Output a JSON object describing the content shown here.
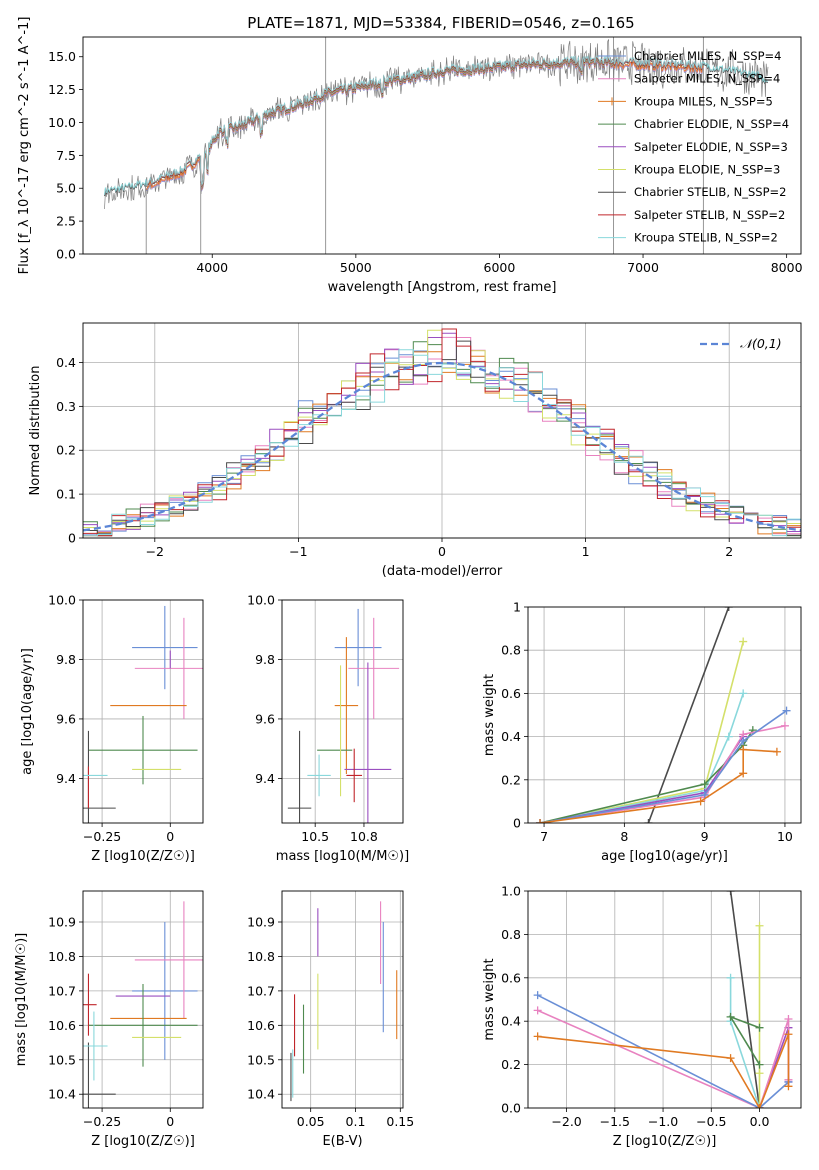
{
  "figure_title": "PLATE=1871, MJD=53384, FIBERID=0546, z=0.165",
  "colors": {
    "ChabrierMILES": "#6a8fd6",
    "SalpeterMILES": "#e882c0",
    "KroupaMILES": "#e07a22",
    "ChabrierELODIE": "#4f8a4f",
    "SalpeterELODIE": "#9a4fc0",
    "KroupaELODIE": "#d4e06a",
    "ChabrierSTELIB": "#4a4a4a",
    "SalpeterSTELIB": "#c0262b",
    "KroupaSTELIB": "#8ad8dc",
    "data": "#7f7f7f",
    "normal": "#5b85d6"
  },
  "chart_data": [
    {
      "id": "spectrum",
      "type": "line",
      "title": "PLATE=1871, MJD=53384, FIBERID=0546, z=0.165",
      "xlabel": "wavelength [Angstrom, rest frame]",
      "ylabel": "Flux [f_λ 10^-17 erg cm^-2 s^-1 A^-1]",
      "xlim": [
        3100,
        8100
      ],
      "ylim": [
        0,
        16.5
      ],
      "xticks": [
        4000,
        5000,
        6000,
        7000,
        8000
      ],
      "yticks": [
        0.0,
        2.5,
        5.0,
        7.5,
        10.0,
        12.5,
        15.0
      ],
      "legend_position": "top-right",
      "legend": [
        {
          "key": "ChabrierMILES",
          "label": "Chabrier MILES, N_SSP=4",
          "marker": ""
        },
        {
          "key": "SalpeterMILES",
          "label": "Salpeter MILES, N_SSP=4",
          "marker": ""
        },
        {
          "key": "KroupaMILES",
          "label": "Kroupa MILES, N_SSP=5",
          "marker": "+"
        },
        {
          "key": "ChabrierELODIE",
          "label": "Chabrier ELODIE, N_SSP=4",
          "marker": ""
        },
        {
          "key": "SalpeterELODIE",
          "label": "Salpeter ELODIE, N_SSP=3",
          "marker": ""
        },
        {
          "key": "KroupaELODIE",
          "label": "Kroupa ELODIE, N_SSP=3",
          "marker": ""
        },
        {
          "key": "ChabrierSTELIB",
          "label": "Chabrier STELIB, N_SSP=2",
          "marker": ""
        },
        {
          "key": "SalpeterSTELIB",
          "label": "Salpeter STELIB, N_SSP=2",
          "marker": ""
        },
        {
          "key": "KroupaSTELIB",
          "label": "Kroupa STELIB, N_SSP=2",
          "marker": ""
        }
      ],
      "continuum": [
        [
          3250,
          4.6
        ],
        [
          3400,
          4.9
        ],
        [
          3600,
          5.4
        ],
        [
          3800,
          6.3
        ],
        [
          3950,
          7.6
        ],
        [
          4050,
          9.3
        ],
        [
          4200,
          9.7
        ],
        [
          4400,
          10.7
        ],
        [
          4600,
          11.3
        ],
        [
          4800,
          12.2
        ],
        [
          5000,
          12.6
        ],
        [
          5200,
          13.1
        ],
        [
          5400,
          13.4
        ],
        [
          5600,
          13.9
        ],
        [
          5800,
          14.0
        ],
        [
          6000,
          14.2
        ],
        [
          6200,
          14.4
        ],
        [
          6400,
          14.5
        ],
        [
          6600,
          14.6
        ],
        [
          6800,
          14.5
        ],
        [
          7000,
          14.4
        ],
        [
          7200,
          14.3
        ],
        [
          7400,
          14.2
        ],
        [
          7600,
          13.8
        ],
        [
          7800,
          13.4
        ],
        [
          7870,
          13.0
        ]
      ]
    },
    {
      "id": "residuals",
      "type": "line",
      "xlabel": "(data-model)/error",
      "ylabel": "Normed distribution",
      "xlim": [
        -2.5,
        2.5
      ],
      "ylim": [
        0,
        0.49
      ],
      "xticks": [
        -2,
        -1,
        0,
        1,
        2
      ],
      "yticks": [
        0.0,
        0.1,
        0.2,
        0.3,
        0.4
      ],
      "legend_position": "top-right",
      "legend": [
        {
          "label": "𝒩(0,1)",
          "style": "dashed"
        }
      ],
      "bin_edges_start": -2.5,
      "bin_width": 0.1
    },
    {
      "id": "age_vs_Z",
      "type": "scatter",
      "xlabel": "Z [log10(Z/Z☉)]",
      "ylabel": "age  [log10(age/yr)]",
      "xlim": [
        -0.32,
        0.12
      ],
      "ylim": [
        9.25,
        10.0
      ],
      "xticks": [
        -0.25,
        0.0
      ],
      "yticks": [
        9.4,
        9.6,
        9.8,
        10.0
      ],
      "points": [
        {
          "key": "ChabrierMILES",
          "x": -0.02,
          "y": 9.84,
          "xerr": 0.12,
          "yerr": 0.14
        },
        {
          "key": "SalpeterMILES",
          "x": 0.05,
          "y": 9.77,
          "xerr": 0.18,
          "yerr": 0.17
        },
        {
          "key": "KroupaMILES",
          "x": -0.08,
          "y": 9.645,
          "xerr": 0.14,
          "yerr": 0.0
        },
        {
          "key": "ChabrierELODIE",
          "x": -0.1,
          "y": 9.495,
          "xerr": 0.2,
          "yerr": 0.115
        },
        {
          "key": "SalpeterELODIE",
          "x": 0.0,
          "y": 9.8,
          "xerr": 0.0,
          "yerr": 0.03
        },
        {
          "key": "KroupaELODIE",
          "x": -0.05,
          "y": 9.43,
          "xerr": 0.09,
          "yerr": 0.0
        },
        {
          "key": "ChabrierSTELIB",
          "x": -0.3,
          "y": 9.3,
          "xerr": 0.1,
          "yerr": 0.26
        },
        {
          "key": "SalpeterSTELIB",
          "x": -0.3,
          "y": 9.37,
          "xerr": 0.0,
          "yerr": 0.07
        },
        {
          "key": "KroupaSTELIB",
          "x": -0.28,
          "y": 9.41,
          "xerr": 0.05,
          "yerr": 0.0
        }
      ]
    },
    {
      "id": "age_vs_mass",
      "type": "scatter",
      "xlabel": "mass [log10(M/M☉)]",
      "ylabel": "",
      "xlim": [
        10.33,
        10.95
      ],
      "ylim": [
        9.25,
        10.0
      ],
      "xticks": [
        10.5,
        10.75
      ],
      "yticks": [
        9.4,
        9.6,
        9.8,
        10.0
      ],
      "points": [
        {
          "key": "ChabrierMILES",
          "x": 10.72,
          "y": 9.84,
          "xerr": 0.12,
          "yerr": 0.13
        },
        {
          "key": "SalpeterMILES",
          "x": 10.8,
          "y": 9.77,
          "xerr": 0.13,
          "yerr": 0.17
        },
        {
          "key": "KroupaMILES",
          "x": 10.66,
          "y": 9.645,
          "xerr": 0.06,
          "yerr": 0.23
        },
        {
          "key": "ChabrierELODIE",
          "x": 10.6,
          "y": 9.495,
          "xerr": 0.09,
          "yerr": 0.0
        },
        {
          "key": "SalpeterELODIE",
          "x": 10.77,
          "y": 9.43,
          "xerr": 0.12,
          "yerr": 0.36
        },
        {
          "key": "KroupaELODIE",
          "x": 10.63,
          "y": 9.56,
          "xerr": 0.0,
          "yerr": 0.22
        },
        {
          "key": "ChabrierSTELIB",
          "x": 10.42,
          "y": 9.3,
          "xerr": 0.06,
          "yerr": 0.26
        },
        {
          "key": "SalpeterSTELIB",
          "x": 10.7,
          "y": 9.41,
          "xerr": 0.04,
          "yerr": 0.09
        },
        {
          "key": "KroupaSTELIB",
          "x": 10.52,
          "y": 9.41,
          "xerr": 0.06,
          "yerr": 0.07
        }
      ]
    },
    {
      "id": "weight_vs_age",
      "type": "line",
      "xlabel": "age  [log10(age/yr)]",
      "ylabel": "mass weight",
      "xlim": [
        6.8,
        10.2
      ],
      "ylim": [
        0,
        1.0
      ],
      "xticks": [
        7,
        8,
        9,
        10
      ],
      "yticks": [
        0.0,
        0.2,
        0.4,
        0.6,
        0.8,
        1.0
      ],
      "series": [
        {
          "key": "ChabrierSTELIB",
          "x": [
            8.3,
            9.3
          ],
          "y": [
            0.0,
            1.0
          ]
        },
        {
          "key": "KroupaELODIE",
          "x": [
            6.95,
            9.0,
            9.48
          ],
          "y": [
            0.0,
            0.16,
            0.84
          ]
        },
        {
          "key": "KroupaSTELIB",
          "x": [
            6.95,
            9.0,
            9.3,
            9.48
          ],
          "y": [
            0.0,
            0.15,
            0.4,
            0.6
          ]
        },
        {
          "key": "SalpeterELODIE",
          "x": [
            6.95,
            9.0,
            9.48
          ],
          "y": [
            0.0,
            0.14,
            0.4
          ]
        },
        {
          "key": "ChabrierELODIE",
          "x": [
            6.95,
            9.0,
            9.48,
            9.6
          ],
          "y": [
            0.0,
            0.18,
            0.36,
            0.43
          ]
        },
        {
          "key": "SalpeterMILES",
          "x": [
            6.95,
            9.0,
            9.48,
            10.0
          ],
          "y": [
            0.0,
            0.12,
            0.41,
            0.45
          ]
        },
        {
          "key": "ChabrierMILES",
          "x": [
            6.95,
            9.0,
            9.48,
            10.02
          ],
          "y": [
            0.0,
            0.13,
            0.38,
            0.52
          ]
        },
        {
          "key": "KroupaMILES",
          "x": [
            6.95,
            8.95,
            9.48,
            9.48,
            9.9
          ],
          "y": [
            0.0,
            0.1,
            0.23,
            0.34,
            0.33
          ]
        }
      ]
    },
    {
      "id": "mass_vs_Z",
      "type": "scatter",
      "xlabel": "Z [log10(Z/Z☉)]",
      "ylabel": "mass [log10(M/M☉)]",
      "xlim": [
        -0.32,
        0.12
      ],
      "ylim": [
        10.36,
        10.99
      ],
      "xticks": [
        -0.25,
        0.0
      ],
      "yticks": [
        10.4,
        10.5,
        10.6,
        10.7,
        10.8,
        10.9
      ],
      "points": [
        {
          "key": "ChabrierMILES",
          "x": -0.02,
          "y": 10.7,
          "xerr": 0.12,
          "yerr": 0.2
        },
        {
          "key": "SalpeterMILES",
          "x": 0.05,
          "y": 10.79,
          "xerr": 0.18,
          "yerr": 0.17
        },
        {
          "key": "KroupaMILES",
          "x": -0.08,
          "y": 10.62,
          "xerr": 0.14,
          "yerr": 0.0
        },
        {
          "key": "ChabrierELODIE",
          "x": -0.1,
          "y": 10.6,
          "xerr": 0.2,
          "yerr": 0.12
        },
        {
          "key": "SalpeterELODIE",
          "x": -0.1,
          "y": 10.685,
          "xerr": 0.1,
          "yerr": 0.0
        },
        {
          "key": "KroupaELODIE",
          "x": -0.05,
          "y": 10.565,
          "xerr": 0.09,
          "yerr": 0.0
        },
        {
          "key": "ChabrierSTELIB",
          "x": -0.3,
          "y": 10.4,
          "xerr": 0.1,
          "yerr": 0.15
        },
        {
          "key": "SalpeterSTELIB",
          "x": -0.3,
          "y": 10.66,
          "xerr": 0.03,
          "yerr": 0.09
        },
        {
          "key": "KroupaSTELIB",
          "x": -0.28,
          "y": 10.54,
          "xerr": 0.05,
          "yerr": 0.1
        }
      ]
    },
    {
      "id": "mass_vs_EBV",
      "type": "scatter",
      "xlabel": "E(B-V)",
      "ylabel": "",
      "xlim": [
        0.018,
        0.153
      ],
      "ylim": [
        10.36,
        10.99
      ],
      "xticks": [
        0.05,
        0.1,
        0.15
      ],
      "yticks": [
        10.4,
        10.5,
        10.6,
        10.7,
        10.8,
        10.9
      ],
      "points": [
        {
          "key": "ChabrierMILES",
          "x": 0.131,
          "y": 10.74,
          "xerr": 0.0,
          "yerr": 0.16
        },
        {
          "key": "SalpeterMILES",
          "x": 0.128,
          "y": 10.84,
          "xerr": 0.0,
          "yerr": 0.12
        },
        {
          "key": "KroupaMILES",
          "x": 0.146,
          "y": 10.66,
          "xerr": 0.0,
          "yerr": 0.1
        },
        {
          "key": "ChabrierELODIE",
          "x": 0.042,
          "y": 10.56,
          "xerr": 0.0,
          "yerr": 0.1
        },
        {
          "key": "SalpeterELODIE",
          "x": 0.058,
          "y": 10.87,
          "xerr": 0.0,
          "yerr": 0.07
        },
        {
          "key": "KroupaELODIE",
          "x": 0.058,
          "y": 10.64,
          "xerr": 0.0,
          "yerr": 0.11
        },
        {
          "key": "ChabrierSTELIB",
          "x": 0.028,
          "y": 10.45,
          "xerr": 0.0,
          "yerr": 0.07
        },
        {
          "key": "SalpeterSTELIB",
          "x": 0.032,
          "y": 10.6,
          "xerr": 0.0,
          "yerr": 0.09
        },
        {
          "key": "KroupaSTELIB",
          "x": 0.03,
          "y": 10.46,
          "xerr": 0.0,
          "yerr": 0.07
        }
      ]
    },
    {
      "id": "weight_vs_Z",
      "type": "line",
      "xlabel": "Z [log10(Z/Z☉)]",
      "ylabel": "mass weight",
      "xlim": [
        -2.4,
        0.43
      ],
      "ylim": [
        0,
        1.0
      ],
      "xticks": [
        -2.0,
        -1.5,
        -1.0,
        -0.5,
        0.0
      ],
      "yticks": [
        0.0,
        0.2,
        0.4,
        0.6,
        0.8,
        1.0
      ],
      "series": [
        {
          "key": "ChabrierSTELIB",
          "x": [
            -0.3,
            0.0
          ],
          "y": [
            1.0,
            0.0
          ]
        },
        {
          "key": "KroupaELODIE",
          "x": [
            0.0,
            0.0,
            0.0
          ],
          "y": [
            0.0,
            0.84,
            0.16
          ]
        },
        {
          "key": "KroupaSTELIB",
          "x": [
            0.0,
            -0.3,
            -0.3
          ],
          "y": [
            0.0,
            0.4,
            0.6
          ]
        },
        {
          "key": "ChabrierELODIE",
          "x": [
            0.0,
            -0.3,
            0.0
          ],
          "y": [
            0.2,
            0.42,
            0.37
          ]
        },
        {
          "key": "SalpeterELODIE",
          "x": [
            0.0,
            0.3,
            0.3
          ],
          "y": [
            0.0,
            0.37,
            0.12
          ]
        },
        {
          "key": "SalpeterMILES",
          "x": [
            -2.3,
            0.0,
            0.3,
            0.3
          ],
          "y": [
            0.45,
            0.0,
            0.41,
            0.13
          ]
        },
        {
          "key": "ChabrierMILES",
          "x": [
            -2.3,
            0.0,
            0.3
          ],
          "y": [
            0.52,
            0.0,
            0.12
          ]
        },
        {
          "key": "KroupaMILES",
          "x": [
            -2.3,
            -0.3,
            0.0,
            0.3,
            0.3
          ],
          "y": [
            0.33,
            0.23,
            0.0,
            0.34,
            0.1
          ]
        }
      ]
    }
  ]
}
